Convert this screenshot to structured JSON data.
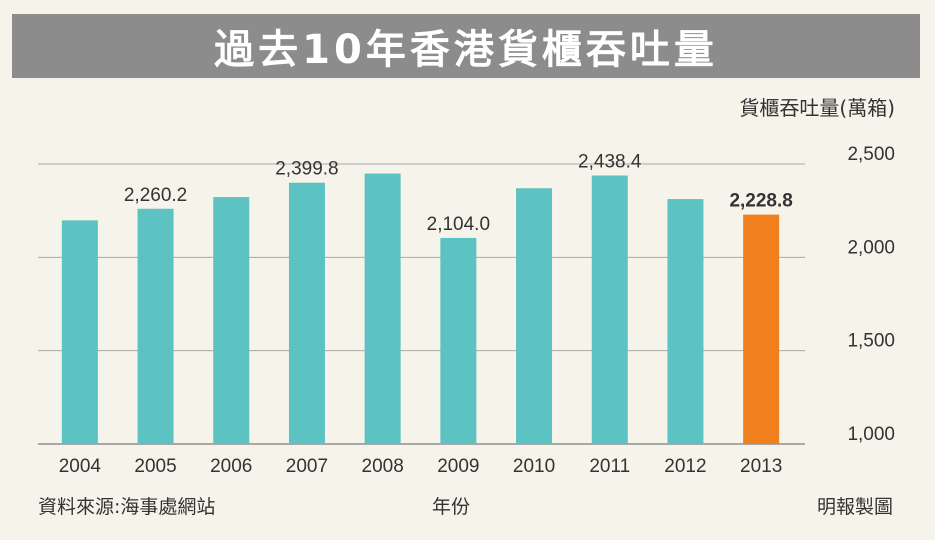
{
  "title": "過去10年香港貨櫃吞吐量",
  "unit_label": "貨櫃吞吐量(萬箱)",
  "footer": {
    "source": "資料來源:海事處網站",
    "xlabel": "年份",
    "credit": "明報製圖"
  },
  "colors": {
    "bar": "#5cc2c2",
    "highlight": "#f07f1e",
    "grid": "#a8a8a8",
    "text": "#333333"
  },
  "chart_data": {
    "type": "bar",
    "categories": [
      "2004",
      "2005",
      "2006",
      "2007",
      "2008",
      "2009",
      "2010",
      "2011",
      "2012",
      "2013"
    ],
    "values": [
      2198,
      2260.2,
      2323,
      2399.8,
      2449,
      2104.0,
      2370,
      2438.4,
      2312,
      2228.8
    ],
    "data_labels": [
      "",
      "2,260.2",
      "",
      "2,399.8",
      "",
      "2,104.0",
      "",
      "2,438.4",
      "",
      "2,228.8"
    ],
    "highlight_index": 9,
    "yticks": [
      1000,
      1500,
      2000,
      2500
    ],
    "ytick_labels": [
      "1,000",
      "1,500",
      "2,000",
      "2,500"
    ],
    "ylim": [
      1000,
      2500
    ],
    "grid": true,
    "title": "過去10年香港貨櫃吞吐量",
    "xlabel": "年份",
    "ylabel": "貨櫃吞吐量(萬箱)"
  }
}
